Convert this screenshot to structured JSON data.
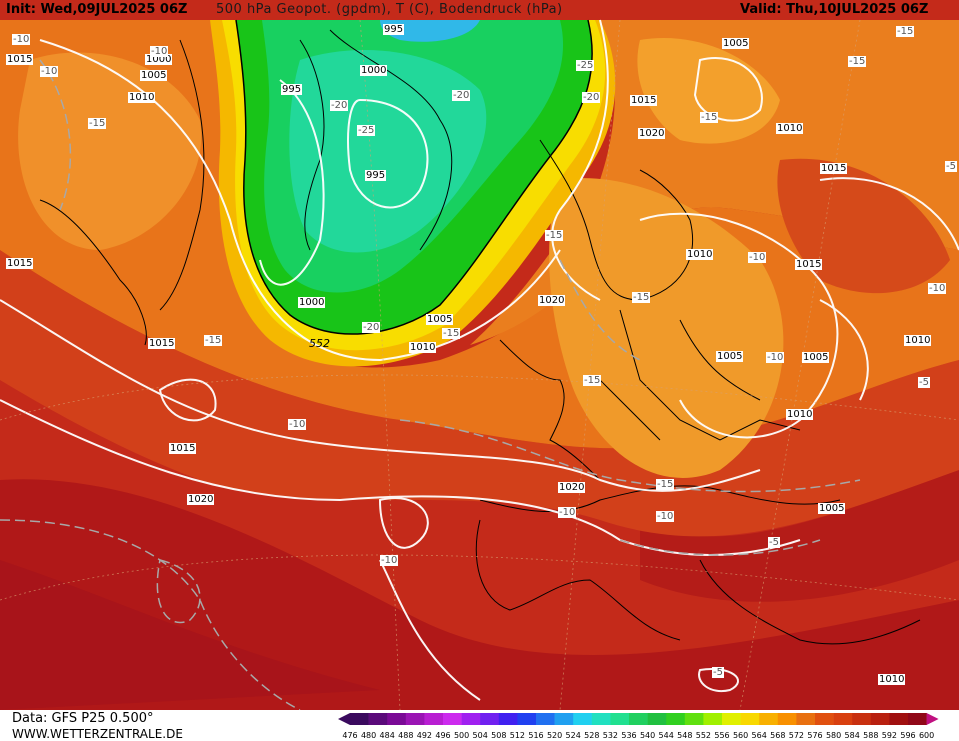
{
  "header": {
    "init": "Init: Wed,09JUL2025 06Z",
    "title": "500 hPa Geopot. (gpdm), T (C), Bodendruck (hPa)",
    "valid": "Valid: Thu,10JUL2025 06Z"
  },
  "footer": {
    "data_source": "Data: GFS P25 0.500°",
    "website": "WWW.WETTERZENTRALE.DE"
  },
  "colorbar": {
    "ticks": [
      "476",
      "480",
      "484",
      "488",
      "492",
      "496",
      "500",
      "504",
      "508",
      "512",
      "516",
      "520",
      "524",
      "528",
      "532",
      "536",
      "540",
      "544",
      "548",
      "552",
      "556",
      "560",
      "564",
      "568",
      "572",
      "576",
      "580",
      "584",
      "588",
      "592",
      "596",
      "600"
    ],
    "colors": [
      "#3a0a5e",
      "#5a0a7a",
      "#7a0a96",
      "#9a14b4",
      "#b81ed2",
      "#cc2aee",
      "#a020f0",
      "#7020f0",
      "#4020f0",
      "#2040f0",
      "#2070f0",
      "#20a0f0",
      "#20d0f0",
      "#20e0c0",
      "#20e090",
      "#20d060",
      "#20c040",
      "#30d020",
      "#60e010",
      "#a0f000",
      "#e0f000",
      "#f8d800",
      "#f8b000",
      "#f89000",
      "#e87010",
      "#e05010",
      "#d84010",
      "#c83010",
      "#b82010",
      "#a01010",
      "#900818",
      "#c01080"
    ]
  },
  "map": {
    "pressure_labels": [
      "1015",
      "1005",
      "1000",
      "1005",
      "1010",
      "995",
      "1000",
      "995",
      "1000",
      "995",
      "1005",
      "1015",
      "1020",
      "1010",
      "1015",
      "1010",
      "1015",
      "1020",
      "1005",
      "1010",
      "1010",
      "1005",
      "1010",
      "1015",
      "1020",
      "1015",
      "1020",
      "1005",
      "1010",
      "1010",
      "1015",
      "1010"
    ],
    "temperature_labels": [
      "-10",
      "-10",
      "-15",
      "-20",
      "-25",
      "-20",
      "-25",
      "-20",
      "-15",
      "-15",
      "-10",
      "-15",
      "-15",
      "-10",
      "-20",
      "-15",
      "-10",
      "-15",
      "-10",
      "-10",
      "-15",
      "-10",
      "-10",
      "-5",
      "-5",
      "-5",
      "-10",
      "-15",
      "-15",
      "-5"
    ],
    "geopotential_label": "552"
  }
}
